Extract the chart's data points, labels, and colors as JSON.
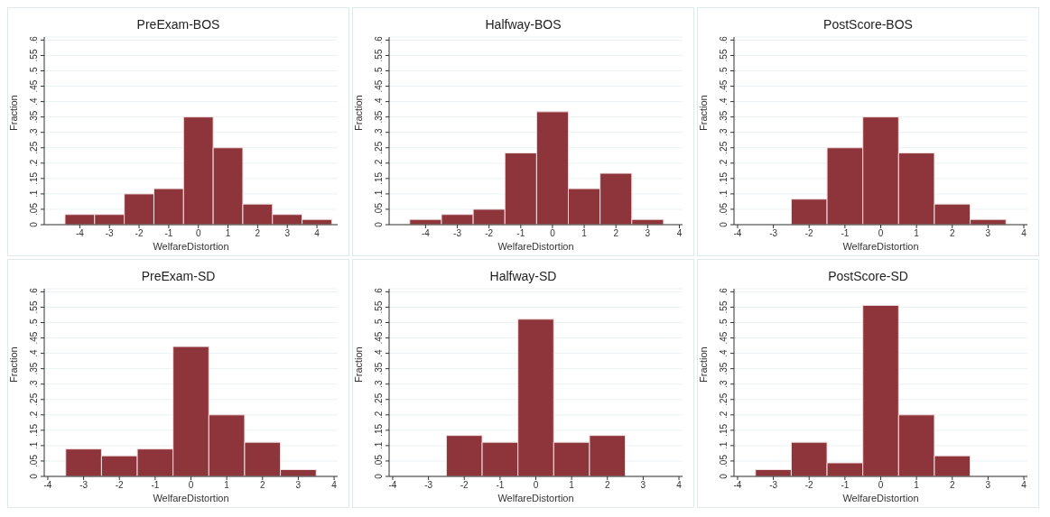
{
  "chart_data": [
    {
      "type": "histogram",
      "title": "PreExam-BOS",
      "xlabel": "WelfareDistortion",
      "ylabel": "Fraction",
      "color": "#8e353c",
      "grid": "y",
      "bins": [
        -4.5,
        -3.5,
        -2.5,
        -1.5,
        -0.5,
        0.5,
        1.5,
        2.5,
        3.5,
        4.5
      ],
      "values": [
        0.033,
        0.033,
        0.1,
        0.117,
        0.35,
        0.25,
        0.067,
        0.033,
        0.017
      ],
      "xlim": [
        -5.2,
        4.7
      ],
      "xticks": [
        -4,
        -3,
        -2,
        -1,
        0,
        1,
        2,
        3,
        4
      ],
      "ylim": [
        0,
        0.61
      ],
      "yticks": [
        {
          "value": 0,
          "label": "0"
        },
        {
          "value": 0.05,
          "label": ".05"
        },
        {
          "value": 0.1,
          "label": ".1"
        },
        {
          "value": 0.15,
          "label": ".15"
        },
        {
          "value": 0.2,
          "label": ".2"
        },
        {
          "value": 0.25,
          "label": ".25"
        },
        {
          "value": 0.3,
          "label": ".3"
        },
        {
          "value": 0.35,
          "label": ".35"
        },
        {
          "value": 0.4,
          "label": ".4"
        },
        {
          "value": 0.45,
          "label": ".45"
        },
        {
          "value": 0.5,
          "label": ".5"
        },
        {
          "value": 0.55,
          "label": ".55"
        },
        {
          "value": 0.6,
          "label": ".6"
        }
      ]
    },
    {
      "type": "histogram",
      "title": "Halfway-BOS",
      "xlabel": "WelfareDistortion",
      "ylabel": "Fraction",
      "color": "#8e353c",
      "grid": "y",
      "bins": [
        -4.5,
        -3.5,
        -2.5,
        -1.5,
        -0.5,
        0.5,
        1.5,
        2.5,
        3.5
      ],
      "values": [
        0.017,
        0.033,
        0.05,
        0.233,
        0.367,
        0.117,
        0.167,
        0.017
      ],
      "xlim": [
        -5.15,
        4.1
      ],
      "xticks": [
        -4,
        -3,
        -2,
        -1,
        0,
        1,
        2,
        3,
        4
      ],
      "ylim": [
        0,
        0.61
      ],
      "yticks": [
        {
          "value": 0,
          "label": "0"
        },
        {
          "value": 0.05,
          "label": ".05"
        },
        {
          "value": 0.1,
          "label": ".1"
        },
        {
          "value": 0.15,
          "label": ".15"
        },
        {
          "value": 0.2,
          "label": ".2"
        },
        {
          "value": 0.25,
          "label": ".25"
        },
        {
          "value": 0.3,
          "label": ".3"
        },
        {
          "value": 0.35,
          "label": ".35"
        },
        {
          "value": 0.4,
          "label": ".4"
        },
        {
          "value": 0.45,
          "label": ".45"
        },
        {
          "value": 0.5,
          "label": ".5"
        },
        {
          "value": 0.55,
          "label": ".55"
        },
        {
          "value": 0.6,
          "label": ".6"
        }
      ]
    },
    {
      "type": "histogram",
      "title": "PostScore-BOS",
      "xlabel": "WelfareDistortion",
      "ylabel": "Fraction",
      "color": "#8e353c",
      "grid": "y",
      "bins": [
        -2.5,
        -1.5,
        -0.5,
        0.5,
        1.5,
        2.5,
        3.5
      ],
      "values": [
        0.083,
        0.25,
        0.35,
        0.233,
        0.067,
        0.017
      ],
      "xlim": [
        -4.1,
        4.1
      ],
      "xticks": [
        -4,
        -3,
        -2,
        -1,
        0,
        1,
        2,
        3,
        4
      ],
      "ylim": [
        0,
        0.61
      ],
      "yticks": [
        {
          "value": 0,
          "label": "0"
        },
        {
          "value": 0.05,
          "label": ".05"
        },
        {
          "value": 0.1,
          "label": ".1"
        },
        {
          "value": 0.15,
          "label": ".15"
        },
        {
          "value": 0.2,
          "label": ".2"
        },
        {
          "value": 0.25,
          "label": ".25"
        },
        {
          "value": 0.3,
          "label": ".3"
        },
        {
          "value": 0.35,
          "label": ".35"
        },
        {
          "value": 0.4,
          "label": ".4"
        },
        {
          "value": 0.45,
          "label": ".45"
        },
        {
          "value": 0.5,
          "label": ".5"
        },
        {
          "value": 0.55,
          "label": ".55"
        },
        {
          "value": 0.6,
          "label": ".6"
        }
      ]
    },
    {
      "type": "histogram",
      "title": "PreExam-SD",
      "xlabel": "WelfareDistortion",
      "ylabel": "Fraction",
      "color": "#8e353c",
      "grid": "y",
      "bins": [
        -3.5,
        -2.5,
        -1.5,
        -0.5,
        0.5,
        1.5,
        2.5,
        3.5
      ],
      "values": [
        0.089,
        0.067,
        0.089,
        0.422,
        0.2,
        0.111,
        0.022
      ],
      "xlim": [
        -4.1,
        4.1
      ],
      "xticks": [
        -4,
        -3,
        -2,
        -1,
        0,
        1,
        2,
        3,
        4
      ],
      "ylim": [
        0,
        0.61
      ],
      "yticks": [
        {
          "value": 0,
          "label": "0"
        },
        {
          "value": 0.05,
          "label": ".05"
        },
        {
          "value": 0.1,
          "label": ".1"
        },
        {
          "value": 0.15,
          "label": ".15"
        },
        {
          "value": 0.2,
          "label": ".2"
        },
        {
          "value": 0.25,
          "label": ".25"
        },
        {
          "value": 0.3,
          "label": ".3"
        },
        {
          "value": 0.35,
          "label": ".35"
        },
        {
          "value": 0.4,
          "label": ".4"
        },
        {
          "value": 0.45,
          "label": ".45"
        },
        {
          "value": 0.5,
          "label": ".5"
        },
        {
          "value": 0.55,
          "label": ".55"
        },
        {
          "value": 0.6,
          "label": ".6"
        }
      ]
    },
    {
      "type": "histogram",
      "title": "Halfway-SD",
      "xlabel": "WelfareDistortion",
      "ylabel": "Fraction",
      "color": "#8e353c",
      "grid": "y",
      "bins": [
        -2.5,
        -1.5,
        -0.5,
        0.5,
        1.5,
        2.5
      ],
      "values": [
        0.133,
        0.111,
        0.511,
        0.111,
        0.133
      ],
      "xlim": [
        -4.1,
        4.1
      ],
      "xticks": [
        -4,
        -3,
        -2,
        -1,
        0,
        1,
        2,
        3,
        4
      ],
      "ylim": [
        0,
        0.61
      ],
      "yticks": [
        {
          "value": 0,
          "label": "0"
        },
        {
          "value": 0.05,
          "label": ".05"
        },
        {
          "value": 0.1,
          "label": ".1"
        },
        {
          "value": 0.15,
          "label": ".15"
        },
        {
          "value": 0.2,
          "label": ".2"
        },
        {
          "value": 0.25,
          "label": ".25"
        },
        {
          "value": 0.3,
          "label": ".3"
        },
        {
          "value": 0.35,
          "label": ".35"
        },
        {
          "value": 0.4,
          "label": ".4"
        },
        {
          "value": 0.45,
          "label": ".45"
        },
        {
          "value": 0.5,
          "label": ".5"
        },
        {
          "value": 0.55,
          "label": ".55"
        },
        {
          "value": 0.6,
          "label": ".6"
        }
      ]
    },
    {
      "type": "histogram",
      "title": "PostScore-SD",
      "xlabel": "WelfareDistortion",
      "ylabel": "Fraction",
      "color": "#8e353c",
      "grid": "y",
      "bins": [
        -3.5,
        -2.5,
        -1.5,
        -0.5,
        0.5,
        1.5,
        2.5
      ],
      "values": [
        0.022,
        0.111,
        0.044,
        0.556,
        0.2,
        0.067
      ],
      "xlim": [
        -4.1,
        4.1
      ],
      "xticks": [
        -4,
        -3,
        -2,
        -1,
        0,
        1,
        2,
        3,
        4
      ],
      "ylim": [
        0,
        0.61
      ],
      "yticks": [
        {
          "value": 0,
          "label": "0"
        },
        {
          "value": 0.05,
          "label": ".05"
        },
        {
          "value": 0.1,
          "label": ".1"
        },
        {
          "value": 0.15,
          "label": ".15"
        },
        {
          "value": 0.2,
          "label": ".2"
        },
        {
          "value": 0.25,
          "label": ".25"
        },
        {
          "value": 0.3,
          "label": ".3"
        },
        {
          "value": 0.35,
          "label": ".35"
        },
        {
          "value": 0.4,
          "label": ".4"
        },
        {
          "value": 0.45,
          "label": ".45"
        },
        {
          "value": 0.5,
          "label": ".5"
        },
        {
          "value": 0.55,
          "label": ".55"
        },
        {
          "value": 0.6,
          "label": ".6"
        }
      ]
    }
  ]
}
